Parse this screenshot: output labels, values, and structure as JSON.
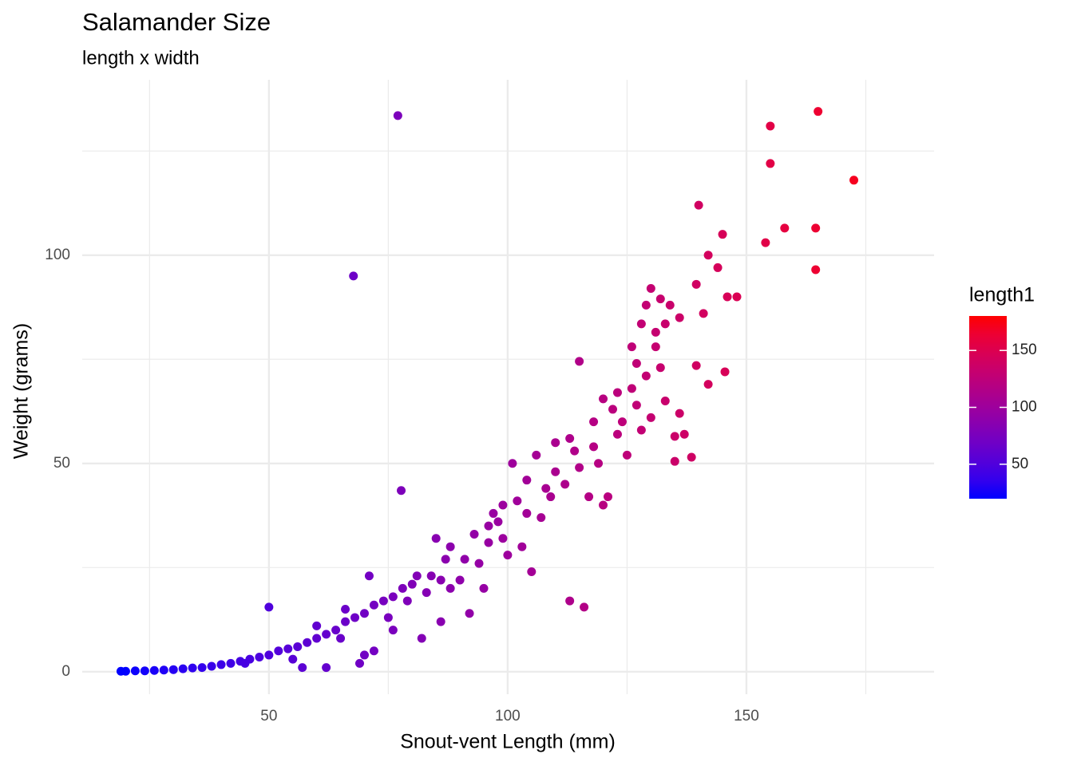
{
  "chart_data": {
    "type": "scatter",
    "title": "Salamander Size",
    "subtitle": "length x width",
    "x_label": "Snout-vent Length (mm)",
    "y_label": "Weight (grams)",
    "xlim": [
      10.9,
      189.3
    ],
    "ylim": [
      -5.4,
      142.1
    ],
    "xticks": [
      50,
      100,
      150
    ],
    "yticks": [
      0,
      50,
      100
    ],
    "minor_xticks": [
      25,
      75,
      125,
      175
    ],
    "minor_yticks": [
      25,
      75,
      125
    ],
    "grid": true,
    "colorbar": {
      "title": "length1",
      "lim": [
        19.7,
        180.3
      ],
      "ticks": [
        50,
        100,
        150
      ],
      "low": "#0000ff",
      "high": "#ff0000"
    },
    "series": [
      {
        "x": [
          77,
          67.7,
          77.7,
          113,
          116,
          50,
          140,
          155,
          155,
          165,
          172.5,
          154,
          158,
          164.5,
          164.5,
          145,
          142,
          144,
          148,
          146,
          139.5,
          141,
          145.5,
          139.5,
          142,
          138.5,
          135,
          130,
          132,
          129,
          134,
          136,
          133,
          128,
          131,
          126,
          131,
          115,
          136,
          133,
          130,
          135,
          137,
          124,
          127,
          120,
          118,
          113,
          110,
          106,
          101,
          104,
          99,
          98,
          96,
          93,
          97,
          88,
          87,
          85,
          84,
          80,
          78,
          76,
          74,
          72,
          70,
          71,
          68,
          66,
          64,
          62,
          60,
          58,
          56,
          54,
          52,
          50,
          48,
          46,
          44,
          42,
          40,
          38,
          36,
          34,
          32,
          30,
          28,
          26,
          24,
          22,
          20,
          19,
          57,
          62,
          69,
          70,
          72,
          76,
          82,
          86,
          92,
          95,
          100,
          103,
          105,
          107,
          110,
          112,
          115,
          117,
          120,
          121,
          125,
          123,
          128,
          119,
          108,
          102,
          94,
          90,
          83,
          79,
          81,
          88,
          65,
          55,
          45,
          60,
          66,
          75,
          86,
          91,
          96,
          99,
          104,
          109,
          114,
          118,
          122,
          126,
          129,
          132,
          127,
          123
        ],
        "values": [
          133.5,
          95,
          43.5,
          17,
          15.5,
          15.5,
          112,
          131,
          122,
          134.5,
          118,
          103,
          106.5,
          106.5,
          96.5,
          105,
          100,
          97,
          90,
          90,
          93,
          86,
          72,
          73.5,
          69,
          51.5,
          50.5,
          92,
          89.5,
          88,
          88,
          85,
          83.5,
          83.5,
          81.5,
          78,
          78,
          74.5,
          62,
          65,
          61,
          56.5,
          57,
          60,
          64,
          65.5,
          60,
          56,
          55,
          52,
          50,
          46,
          40,
          36,
          35,
          33,
          38,
          30,
          27,
          32,
          23,
          21,
          20,
          18,
          17,
          16,
          14,
          23,
          13,
          12,
          10,
          9,
          8,
          7,
          6,
          5.5,
          5,
          4,
          3.5,
          3,
          2.5,
          2,
          1.7,
          1.3,
          1,
          0.9,
          0.7,
          0.5,
          0.4,
          0.3,
          0.2,
          0.2,
          0.1,
          0.1,
          1,
          1,
          2,
          4,
          5,
          10,
          8,
          12,
          14,
          20,
          28,
          30,
          24,
          37,
          48,
          45,
          49,
          42,
          40,
          42,
          52,
          57,
          58,
          50,
          44,
          41,
          26,
          22,
          19,
          17,
          23,
          20,
          8,
          3,
          2,
          11,
          15,
          13,
          22,
          27,
          31,
          32,
          38,
          42,
          53,
          54,
          63,
          68,
          71,
          73,
          74,
          67
        ]
      }
    ]
  }
}
